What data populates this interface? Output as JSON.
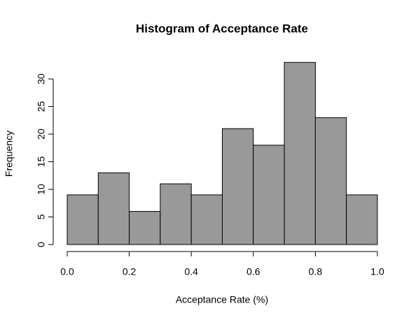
{
  "chart_data": {
    "type": "histogram",
    "title": "Histogram of Acceptance Rate",
    "xlabel": "Acceptance Rate (%)",
    "ylabel": "Frequency",
    "bins": [
      0,
      0.1,
      0.2,
      0.3,
      0.4,
      0.5,
      0.6,
      0.7,
      0.8,
      0.9,
      1.0
    ],
    "values": [
      9,
      13,
      6,
      11,
      9,
      21,
      18,
      33,
      23,
      9
    ],
    "color": "#999999",
    "xlim": [
      0,
      1
    ],
    "xticks": [
      {
        "value": 0,
        "label": "0.0"
      },
      0.2,
      0.4,
      0.6,
      0.8,
      {
        "value": 1,
        "label": "1.0"
      }
    ],
    "ylim": [
      0,
      33
    ],
    "yticks": [
      0,
      5,
      10,
      15,
      20,
      25,
      30
    ],
    "grid": false
  }
}
